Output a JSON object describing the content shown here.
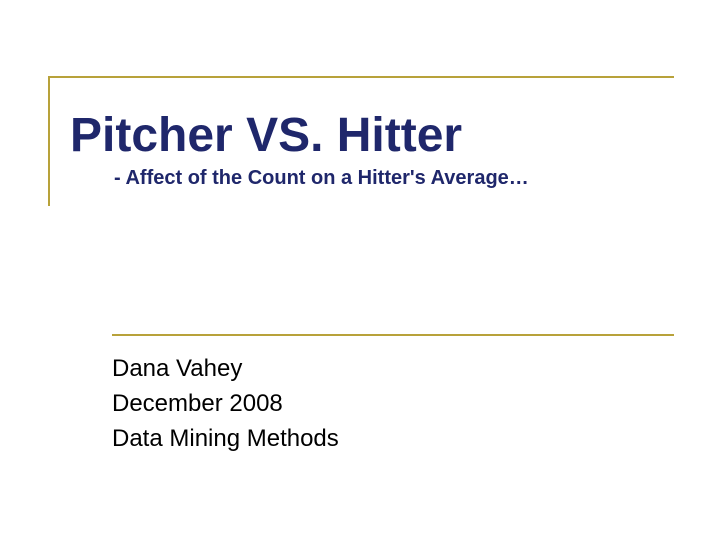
{
  "slide": {
    "title": "Pitcher VS. Hitter",
    "subtitle": "- Affect of the Count on a Hitter's Average…",
    "author": "Dana Vahey",
    "date": "December 2008",
    "course": "Data Mining Methods"
  },
  "style": {
    "title_color": "#1f276b",
    "title_fontsize": 48,
    "subtitle_fontsize": 20,
    "body_fontsize": 24,
    "body_color": "#000000",
    "rule_color": "#b8a23a",
    "background_color": "#ffffff",
    "title_font_family": "Comic Sans MS",
    "body_font_family": "Trebuchet MS"
  }
}
